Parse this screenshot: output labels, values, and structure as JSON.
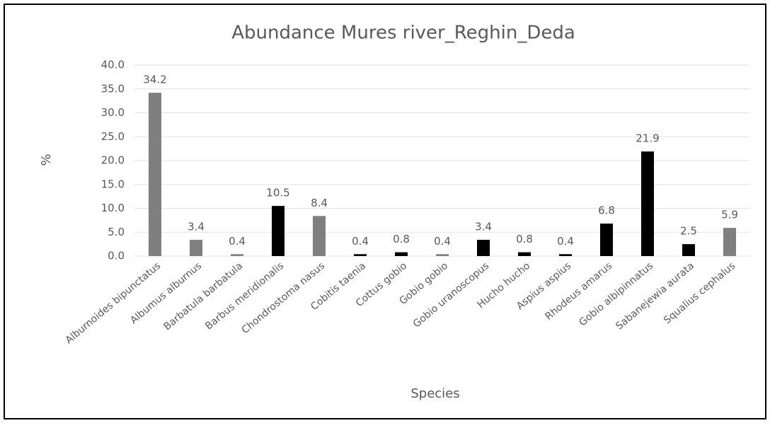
{
  "chart_data": {
    "type": "bar",
    "title": "Abundance  Mures river_Reghin_Deda",
    "x_label": "Species",
    "y_label": "%",
    "categories": [
      "Alburnoides bipunctatus",
      "Albumus alburnus",
      "Barbatula barbatula",
      "Barbus meridionalis",
      "Chondrostoma nasus",
      "Cobitis taenia",
      "Cottus gobio",
      "Gobio gobio",
      "Gobio uranoscopus",
      "Hucho hucho",
      "Aspius aspius",
      "Rhodeus amarus",
      "Gobio albipinnatus",
      "Sabanejewia aurata",
      "Squalius cephalus"
    ],
    "values": [
      34.2,
      3.4,
      0.4,
      10.5,
      8.4,
      0.4,
      0.8,
      0.4,
      3.4,
      0.8,
      0.4,
      6.8,
      21.9,
      2.5,
      5.9
    ],
    "colors": [
      "#7f7f7f",
      "#7f7f7f",
      "#7f7f7f",
      "#000000",
      "#7f7f7f",
      "#000000",
      "#000000",
      "#7f7f7f",
      "#000000",
      "#000000",
      "#000000",
      "#000000",
      "#000000",
      "#000000",
      "#7f7f7f"
    ],
    "ylim": [
      0,
      40
    ],
    "yticks": [
      {
        "value": 0,
        "label": "0.0"
      },
      {
        "value": 5,
        "label": "5.0"
      },
      {
        "value": 10,
        "label": "10.0"
      },
      {
        "value": 15,
        "label": "15.0"
      },
      {
        "value": 20,
        "label": "20.0"
      },
      {
        "value": 25,
        "label": "25.0"
      },
      {
        "value": 30,
        "label": "30.0"
      },
      {
        "value": 35,
        "label": "35.0"
      },
      {
        "value": 40,
        "label": "40.0"
      }
    ],
    "grid": true
  }
}
